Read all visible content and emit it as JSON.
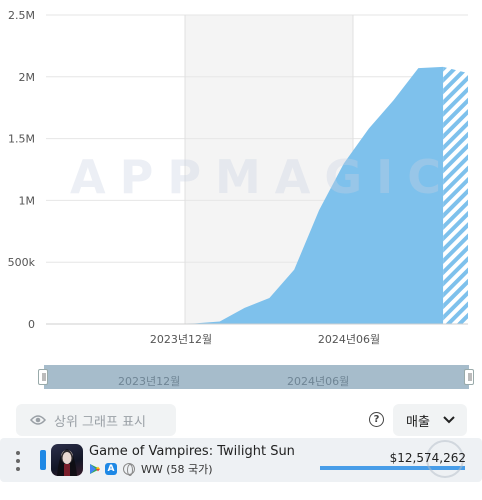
{
  "watermark": "APPMAGIC",
  "chart_data": {
    "type": "area",
    "x_tick_labels": [
      "2023년12월",
      "2024년06월"
    ],
    "y_tick_labels": [
      "0",
      "500k",
      "1M",
      "1.5M",
      "2M",
      "2.5M"
    ],
    "ylim": [
      0,
      2500000
    ],
    "series": [
      {
        "values": [
          0,
          0,
          0,
          0,
          0,
          2000,
          5000,
          20000,
          130000,
          210000,
          440000,
          920000,
          1300000,
          1580000,
          1810000,
          2070000,
          2080000,
          2030000
        ],
        "color": "#7ec1ec",
        "projected_from_index": 16
      }
    ],
    "grid": true
  },
  "range": {
    "labels": [
      "2023년12월",
      "2024년06월"
    ]
  },
  "controls": {
    "top_graph_toggle": "상위 그래프 표시",
    "metric_select": "매출"
  },
  "app": {
    "name": "Game of Vampires: Twilight Sun",
    "region": "WW (58 국가)",
    "revenue": "$12,574,262"
  }
}
